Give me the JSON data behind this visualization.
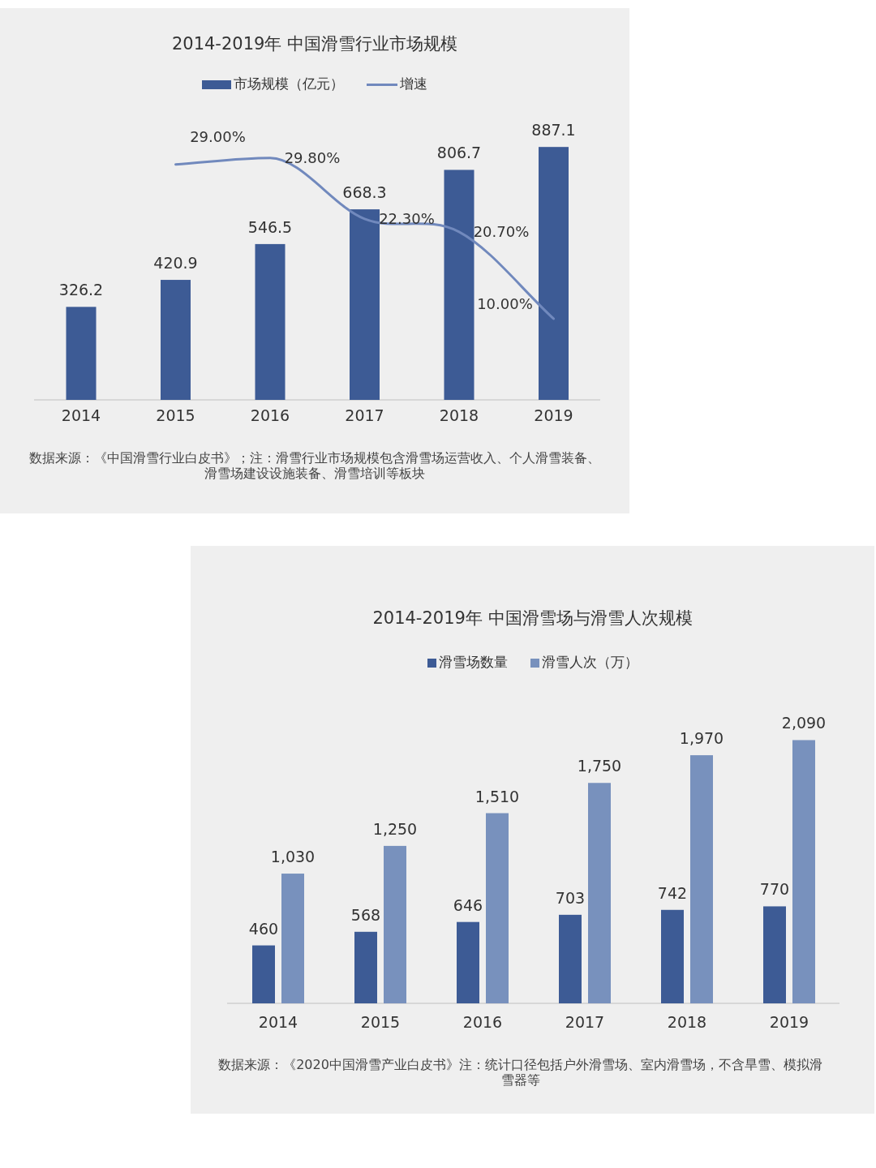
{
  "chart_data": [
    {
      "type": "bar",
      "title": "2014-2019年 中国滑雪行业市场规模",
      "categories": [
        "2014",
        "2015",
        "2016",
        "2017",
        "2018",
        "2019"
      ],
      "series": [
        {
          "name": "市场规模（亿元）",
          "color": "#3d5b95",
          "values": [
            326.2,
            420.9,
            546.5,
            668.3,
            806.7,
            887.1
          ]
        },
        {
          "name": "增速",
          "type": "line",
          "axis": "y2",
          "color": "#7189bd",
          "values": [
            null,
            29.0,
            29.8,
            22.3,
            20.7,
            10.0
          ],
          "value_labels": [
            null,
            "29.00%",
            "29.80%",
            "22.30%",
            "20.70%",
            "10.00%"
          ]
        }
      ],
      "data_labels": true,
      "legend": "top",
      "annotations": [
        "数据来源：《中国滑雪行业白皮书》；注：滑雪行业市场规模包含滑雪场运营收入、个人滑雪装备、滑雪场建设设施装备、滑雪培训等板块"
      ]
    },
    {
      "type": "bar",
      "title": "2014-2019年 中国滑雪场与滑雪人次规模",
      "categories": [
        "2014",
        "2015",
        "2016",
        "2017",
        "2018",
        "2019"
      ],
      "series": [
        {
          "name": "滑雪场数量",
          "color": "#3d5b95",
          "values": [
            460,
            568,
            646,
            703,
            742,
            770
          ]
        },
        {
          "name": "滑雪人次（万）",
          "color": "#7891bd",
          "values": [
            1030,
            1250,
            1510,
            1750,
            1970,
            2090
          ],
          "value_labels": [
            "1,030",
            "1,250",
            "1,510",
            "1,750",
            "1,970",
            "2,090"
          ]
        }
      ],
      "data_labels": true,
      "legend": "top",
      "annotations": [
        "数据来源：《2020中国滑雪产业白皮书》注：统计口径包括户外滑雪场、室内滑雪场，不含旱雪、模拟滑雪器等"
      ]
    }
  ]
}
